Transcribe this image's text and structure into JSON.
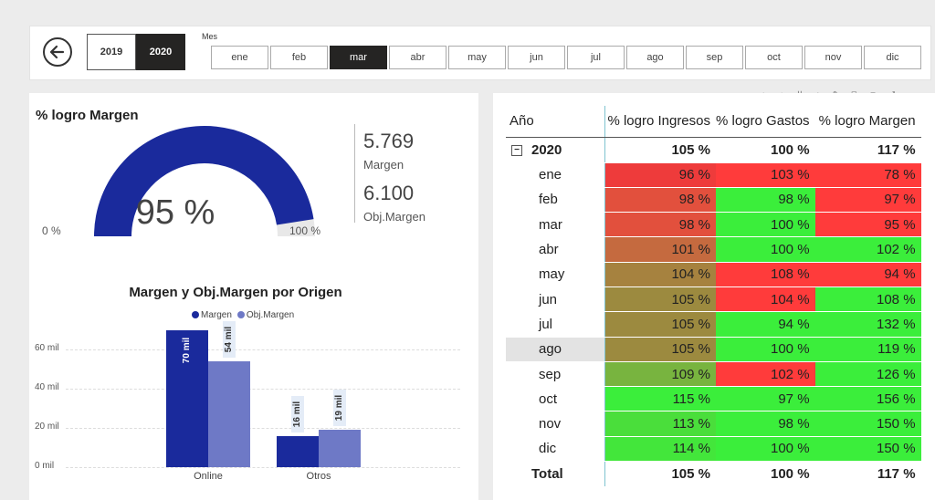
{
  "filters": {
    "years": [
      {
        "label": "2019",
        "selected": false
      },
      {
        "label": "2020",
        "selected": true
      }
    ],
    "mes_title": "Mes",
    "months": [
      {
        "label": "ene",
        "selected": false
      },
      {
        "label": "feb",
        "selected": false
      },
      {
        "label": "mar",
        "selected": true
      },
      {
        "label": "abr",
        "selected": false
      },
      {
        "label": "may",
        "selected": false
      },
      {
        "label": "jun",
        "selected": false
      },
      {
        "label": "jul",
        "selected": false
      },
      {
        "label": "ago",
        "selected": false
      },
      {
        "label": "sep",
        "selected": false
      },
      {
        "label": "oct",
        "selected": false
      },
      {
        "label": "nov",
        "selected": false
      },
      {
        "label": "dic",
        "selected": false
      }
    ]
  },
  "gauge": {
    "title": "% logro Margen",
    "value_text": "95 %",
    "value": 0.95,
    "min_label": "0 %",
    "max_label": "100 %",
    "color": "#1a2a9c",
    "track_color": "#e8e8e8"
  },
  "kpis": {
    "margen_value": "5.769",
    "margen_label": "Margen",
    "obj_value": "6.100",
    "obj_label": "Obj.Margen"
  },
  "bar_chart": {
    "title": "Margen y Obj.Margen por Origen",
    "legend": [
      {
        "name": "Margen",
        "color": "#1a2a9c"
      },
      {
        "name": "Obj.Margen",
        "color": "#6e79c6"
      }
    ],
    "y_ticks": [
      "60 mil",
      "40 mil",
      "20 mil",
      "0 mil"
    ],
    "chart_data": {
      "type": "bar",
      "categories": [
        "Online",
        "Otros"
      ],
      "series": [
        {
          "name": "Margen",
          "values": [
            70,
            16
          ],
          "labels": [
            "70 mil",
            "16 mil"
          ]
        },
        {
          "name": "Obj.Margen",
          "values": [
            54,
            19
          ],
          "labels": [
            "54 mil",
            "19 mil"
          ]
        }
      ],
      "ylim": [
        0,
        70
      ],
      "ytick_values": [
        60,
        40,
        20,
        0
      ]
    }
  },
  "matrix": {
    "headers": [
      "Año",
      "% logro Ingresos",
      "% logro Gastos",
      "% logro Margen"
    ],
    "year_row": {
      "label": "2020",
      "expand_icon": "⊟",
      "values": [
        "105 %",
        "100 %",
        "117 %"
      ]
    },
    "rows": [
      {
        "label": "ene",
        "values": [
          "96 %",
          "103 %",
          "78 %"
        ],
        "colors": [
          "#ee3b3b",
          "#ff3b3b",
          "#ff3b3b"
        ]
      },
      {
        "label": "feb",
        "values": [
          "98 %",
          "98 %",
          "97 %"
        ],
        "colors": [
          "#e2503d",
          "#3bee3b",
          "#ff3b3b"
        ]
      },
      {
        "label": "mar",
        "values": [
          "98 %",
          "100 %",
          "95 %"
        ],
        "colors": [
          "#e2503d",
          "#3bee3b",
          "#ff3b3b"
        ]
      },
      {
        "label": "abr",
        "values": [
          "101 %",
          "100 %",
          "102 %"
        ],
        "colors": [
          "#c56a3f",
          "#3bee3b",
          "#3bee3b"
        ]
      },
      {
        "label": "may",
        "values": [
          "104 %",
          "108 %",
          "94 %"
        ],
        "colors": [
          "#a6823f",
          "#ff3b3b",
          "#ff3b3b"
        ]
      },
      {
        "label": "jun",
        "values": [
          "105 %",
          "104 %",
          "108 %"
        ],
        "colors": [
          "#9c8a3f",
          "#ff3b3b",
          "#3bee3b"
        ]
      },
      {
        "label": "jul",
        "values": [
          "105 %",
          "94 %",
          "132 %"
        ],
        "colors": [
          "#9c8a3f",
          "#3bee3b",
          "#3bee3b"
        ]
      },
      {
        "label": "ago",
        "values": [
          "105 %",
          "100 %",
          "119 %"
        ],
        "colors": [
          "#9c8a3f",
          "#3bee3b",
          "#3bee3b"
        ],
        "selected": true
      },
      {
        "label": "sep",
        "values": [
          "109 %",
          "102 %",
          "126 %"
        ],
        "colors": [
          "#78b43f",
          "#ff3b3b",
          "#3bee3b"
        ]
      },
      {
        "label": "oct",
        "values": [
          "115 %",
          "97 %",
          "156 %"
        ],
        "colors": [
          "#3bee3b",
          "#3bee3b",
          "#3bee3b"
        ]
      },
      {
        "label": "nov",
        "values": [
          "113 %",
          "98 %",
          "150 %"
        ],
        "colors": [
          "#4ade3b",
          "#3bee3b",
          "#3bee3b"
        ]
      },
      {
        "label": "dic",
        "values": [
          "114 %",
          "100 %",
          "150 %"
        ],
        "colors": [
          "#43e63b",
          "#3bee3b",
          "#3bee3b"
        ]
      }
    ],
    "total_row": {
      "label": "Total",
      "values": [
        "105 %",
        "100 %",
        "117 %"
      ]
    }
  },
  "toolbar_icons": [
    "sort-asc-icon",
    "sort-desc-icon",
    "expand-all-icon",
    "drill-icon",
    "pin-icon",
    "copy-icon",
    "filter-icon",
    "focus-icon",
    "more-icon"
  ]
}
